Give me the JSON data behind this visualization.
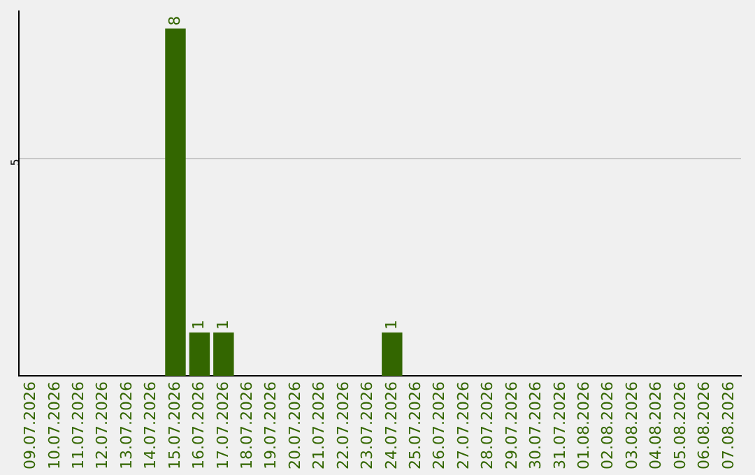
{
  "chart_data": {
    "type": "bar",
    "categories": [
      "09.07.2026",
      "10.07.2026",
      "11.07.2026",
      "12.07.2026",
      "13.07.2026",
      "14.07.2026",
      "15.07.2026",
      "16.07.2026",
      "17.07.2026",
      "18.07.2026",
      "19.07.2026",
      "20.07.2026",
      "21.07.2026",
      "22.07.2026",
      "23.07.2026",
      "24.07.2026",
      "25.07.2026",
      "26.07.2026",
      "27.07.2026",
      "28.07.2026",
      "29.07.2026",
      "30.07.2026",
      "31.07.2026",
      "01.08.2026",
      "02.08.2026",
      "03.08.2026",
      "04.08.2026",
      "05.08.2026",
      "06.08.2026",
      "07.08.2026"
    ],
    "values": [
      0,
      0,
      0,
      0,
      0,
      0,
      8,
      1,
      1,
      0,
      0,
      0,
      0,
      0,
      0,
      1,
      0,
      0,
      0,
      0,
      0,
      0,
      0,
      0,
      0,
      0,
      0,
      0,
      0,
      0
    ],
    "value_labels": [
      null,
      null,
      null,
      null,
      null,
      null,
      "8",
      "1",
      "1",
      null,
      null,
      null,
      null,
      null,
      null,
      "1",
      null,
      null,
      null,
      null,
      null,
      null,
      null,
      null,
      null,
      null,
      null,
      null,
      null,
      null
    ],
    "color": "#336600",
    "ylim": [
      0,
      8.4
    ],
    "yticks": [
      5
    ],
    "grid": "y",
    "legend": false
  }
}
